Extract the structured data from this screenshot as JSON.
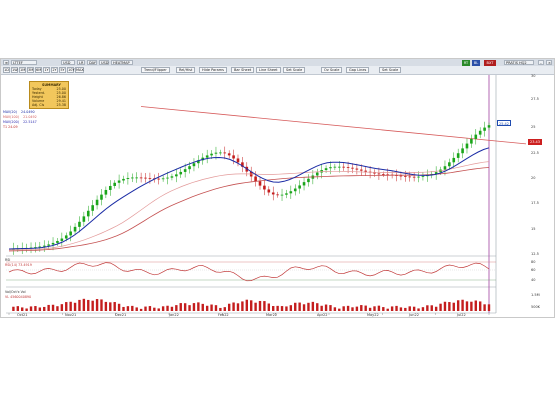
{
  "toolbar": {
    "symbol": "LTTEF",
    "currency": "USD",
    "menu_labels": [
      "LR",
      "DAY",
      "USD",
      "HEATMAP"
    ],
    "tf_labels": [
      "1D",
      "1W",
      "1M",
      "3M",
      "6M",
      "1Y",
      "2Y",
      "5Y",
      "10Y",
      "MAX"
    ],
    "right_badges": [
      {
        "label": "RT",
        "color": "#2a8a2a"
      },
      {
        "label": "BL",
        "color": "#2b4fa8"
      },
      {
        "label": "BXT",
        "color": "#b01e1e"
      }
    ],
    "right_label": "PRATIS HQ2"
  },
  "toolbar2": {
    "buttons": [
      "Trend/Flipper",
      "Rel/Hist",
      "Hide Params",
      "Bar Sheet",
      "Line Sheet",
      "Set Scale",
      "Ov Scale",
      "Gap Lines",
      "Set Scale"
    ]
  },
  "summary": {
    "title": "SUMMARY",
    "rows": [
      {
        "label": "Today",
        "value": "25.00"
      },
      {
        "label": "Yesterd.",
        "value": "25.00"
      },
      {
        "label": "Height",
        "value": "26.86"
      },
      {
        "label": "Volume",
        "value": "29.41"
      },
      {
        "label": "Adj. Cls",
        "value": "25.38"
      },
      {
        "label": "Consol.",
        "value": "1.00"
      }
    ]
  },
  "ma_legend": [
    {
      "label": "MAV(20)",
      "value": "24.0490",
      "color": "#1b2ca5"
    },
    {
      "label": "MAV(100)",
      "value": "21.0492",
      "color": "#d36060"
    },
    {
      "label": "MAV(200)",
      "value": "22.5147",
      "color": "#2c2cb0"
    },
    {
      "label": "T1 24.09",
      "value": "",
      "color": "#c03030"
    }
  ],
  "price_tags": [
    {
      "label": "25.42",
      "color": "#1f4cb0"
    },
    {
      "label": "23.43",
      "color": "#cc1f1f"
    }
  ],
  "y_axis": [
    "30",
    "27.5",
    "25",
    "22.5",
    "20",
    "17.5",
    "15",
    "12.5"
  ],
  "x_axis": [
    "Oct21",
    "Nov21",
    "Dec21",
    "Jan22",
    "Feb22",
    "Mar22",
    "Apr22",
    "May22",
    "Jun22",
    "Jul22"
  ],
  "rsi": {
    "title": "RSI",
    "legend": "RSI(14)  73.4919",
    "y_axis": [
      "80",
      "60",
      "40"
    ]
  },
  "volume": {
    "title": "Vol/Oct'x Vol",
    "legend": "VL  4560040890",
    "y_axis": [
      "1.5M",
      "500K"
    ]
  },
  "chart_data": {
    "type": "line",
    "title": "LTTEF",
    "xlabel": "",
    "ylabel": "",
    "x": [
      "Oct21",
      "Nov21",
      "Dec21",
      "Jan22",
      "Feb22",
      "Mar22",
      "Apr22",
      "May22",
      "Jun22",
      "Jul22"
    ],
    "series": [
      {
        "name": "",
        "values": [
          12.7,
          13.8,
          19.5,
          20.0,
          22.5,
          18.2,
          21.0,
          20.3,
          20.5,
          25.3
        ]
      },
      {
        "name": "MAV(20)",
        "values": [
          12.7,
          13.4,
          17.5,
          20.5,
          22.0,
          19.5,
          21.5,
          20.8,
          20.3,
          23.0
        ]
      },
      {
        "name": "MAV(100)",
        "values": [
          12.6,
          13.0,
          15.0,
          18.5,
          20.2,
          20.3,
          20.6,
          20.5,
          20.6,
          21.6
        ]
      },
      {
        "name": "MAV(200)",
        "values": [
          12.5,
          12.8,
          14.0,
          17.0,
          19.0,
          19.8,
          20.1,
          20.2,
          20.3,
          21.0
        ]
      }
    ],
    "trendline": {
      "start": 27.2,
      "end": 23.4
    },
    "ylim": [
      12.5,
      30
    ],
    "legend": "top-left",
    "grid": false
  }
}
